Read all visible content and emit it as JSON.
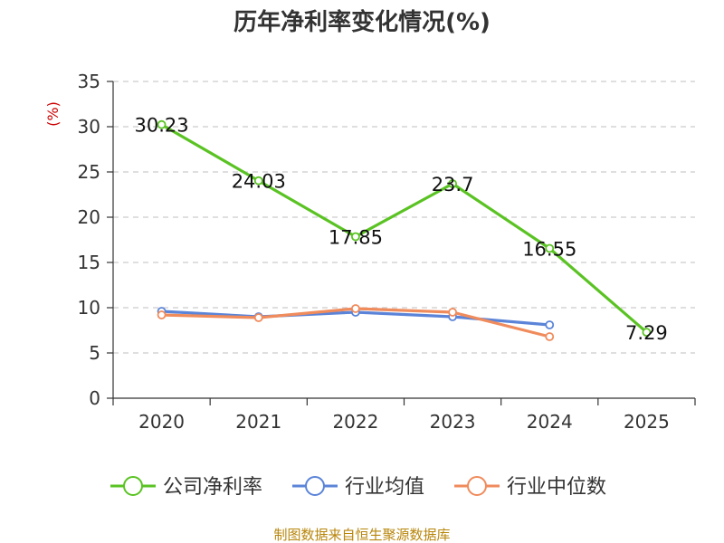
{
  "chart_data": {
    "type": "line",
    "title": "历年净利率变化情况(%)",
    "ylabel": "(%)",
    "xlabel": "",
    "categories": [
      "2020",
      "2021",
      "2022",
      "2023",
      "2024",
      "2025"
    ],
    "ylim": [
      0,
      35
    ],
    "yticks": [
      "0",
      "5",
      "10",
      "15",
      "20",
      "25",
      "30",
      "35"
    ],
    "grid": true,
    "legend_position": "bottom",
    "series": [
      {
        "name": "公司净利率",
        "color": "#5ac323",
        "values": [
          30.23,
          24.03,
          17.85,
          23.7,
          16.55,
          7.29
        ],
        "labels": [
          "30.23",
          "24.03",
          "17.85",
          "23.7",
          "16.55",
          "7.29"
        ]
      },
      {
        "name": "行业均值",
        "color": "#5b84d8",
        "values": [
          9.6,
          9.0,
          9.5,
          9.0,
          8.1,
          null
        ]
      },
      {
        "name": "行业中位数",
        "color": "#f08b5c",
        "values": [
          9.2,
          8.9,
          9.9,
          9.5,
          6.8,
          null
        ]
      }
    ]
  },
  "footer": {
    "source": "制图数据来自恒生聚源数据库"
  }
}
